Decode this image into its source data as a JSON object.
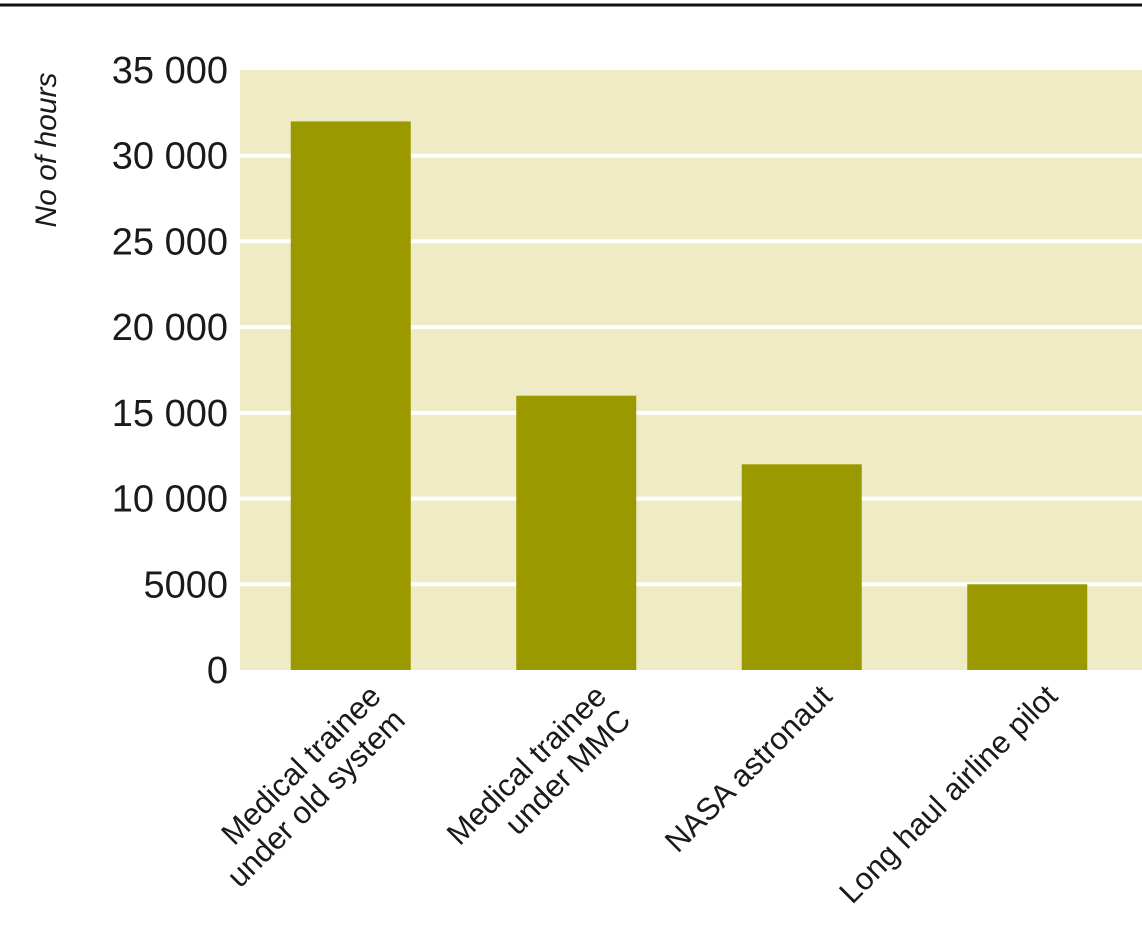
{
  "chart_data": {
    "type": "bar",
    "title": "",
    "xlabel": "",
    "ylabel": "No of hours",
    "categories": [
      [
        "Medical trainee",
        "under old system"
      ],
      [
        "Medical trainee",
        "under MMC"
      ],
      [
        "NASA astronaut"
      ],
      [
        "Long haul airline pilot"
      ]
    ],
    "values": [
      32000,
      16000,
      12000,
      5000
    ],
    "ylim": [
      0,
      35000
    ],
    "yticks": [
      0,
      5000,
      10000,
      15000,
      20000,
      25000,
      30000,
      35000
    ],
    "ytick_labels": [
      "0",
      "5000",
      "10 000",
      "15 000",
      "20 000",
      "25 000",
      "30 000",
      "35 000"
    ],
    "grid": true,
    "colors": {
      "bar": "#9a9a00",
      "plot_background": "#efebc4",
      "grid": "#ffffff",
      "top_rule": "#111111"
    }
  }
}
